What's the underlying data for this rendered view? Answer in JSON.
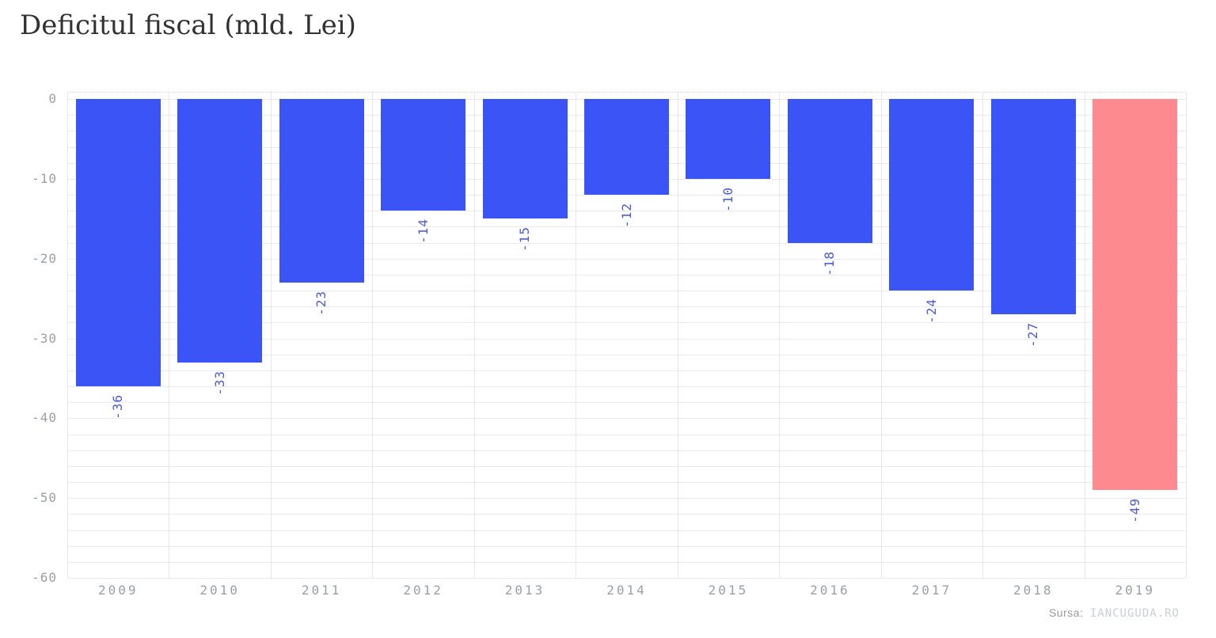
{
  "title": "Deficitul fiscal (mld. Lei)",
  "source": {
    "label": "Sursa:",
    "value": "IANCUGUDA.RO"
  },
  "colors": {
    "bar": "#3a54f5",
    "bar_highlight": "#fd8a8e",
    "value_label": "#4a5cd8",
    "axis_text": "#9b9fa4",
    "grid": "#ebebeb",
    "title_text": "#323232"
  },
  "chart_data": {
    "type": "bar",
    "title": "Deficitul fiscal (mld. Lei)",
    "categories": [
      "2009",
      "2010",
      "2011",
      "2012",
      "2013",
      "2014",
      "2015",
      "2016",
      "2017",
      "2018",
      "2019"
    ],
    "values": [
      -36,
      -33,
      -23,
      -14,
      -15,
      -12,
      -10,
      -18,
      -24,
      -27,
      -49
    ],
    "bar_labels": [
      "-36",
      "-33",
      "-23",
      "-14",
      "-15",
      "-12",
      "-10",
      "-18",
      "-24",
      "-27",
      "-49"
    ],
    "highlight_index": 10,
    "xlabel": "",
    "ylabel": "",
    "ylim": [
      -60,
      0
    ],
    "yticks": [
      0,
      -10,
      -20,
      -30,
      -40,
      -50,
      -60
    ],
    "minor_grid_step": 2,
    "grid": true,
    "legend": false,
    "value_labels_rotated": true
  }
}
